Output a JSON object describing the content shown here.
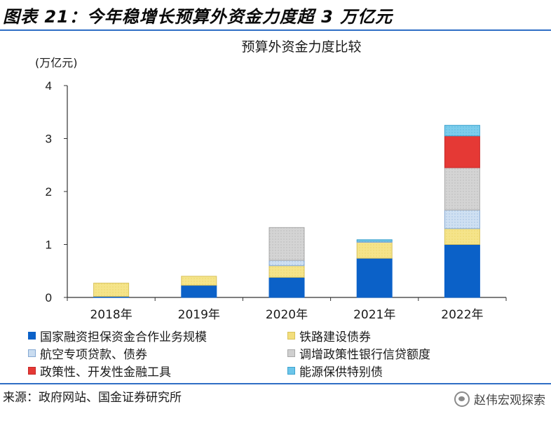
{
  "figure": {
    "title": "图表 21：今年稳增长预算外资金力度超 3 万亿元",
    "source": "来源：政府网站、国金证券研究所",
    "watermark": "赵伟宏观探索"
  },
  "colors": {
    "rule": "#2f6ec5",
    "series": [
      "#0b61c8",
      "#f3de7c",
      "#c9dcf0",
      "#cfcfcf",
      "#e53935",
      "#6cc5ea"
    ]
  },
  "chart_data": {
    "type": "bar",
    "stacked": true,
    "title": "预算外资金力度比较",
    "ylabel": "(万亿元)",
    "ylim": [
      0,
      4
    ],
    "yticks": [
      "0",
      "1",
      "2",
      "3",
      "4"
    ],
    "categories": [
      "2018年",
      "2019年",
      "2020年",
      "2021年",
      "2022年"
    ],
    "series": [
      {
        "name": "国家融资担保资金合作业务规模",
        "values": [
          0.02,
          0.23,
          0.38,
          0.74,
          1.0
        ]
      },
      {
        "name": "铁路建设债券",
        "values": [
          0.25,
          0.17,
          0.22,
          0.3,
          0.3
        ]
      },
      {
        "name": "航空专项贷款、债券",
        "values": [
          0,
          0,
          0.1,
          0.02,
          0.35
        ]
      },
      {
        "name": "调增政策性银行信贷额度",
        "values": [
          0,
          0,
          0.62,
          0,
          0.8
        ]
      },
      {
        "name": "政策性、开发性金融工具",
        "values": [
          0,
          0,
          0,
          0,
          0.6
        ]
      },
      {
        "name": "能源保供特别债",
        "values": [
          0,
          0,
          0,
          0.03,
          0.2
        ]
      }
    ],
    "legend_position": "bottom",
    "grid": false
  }
}
